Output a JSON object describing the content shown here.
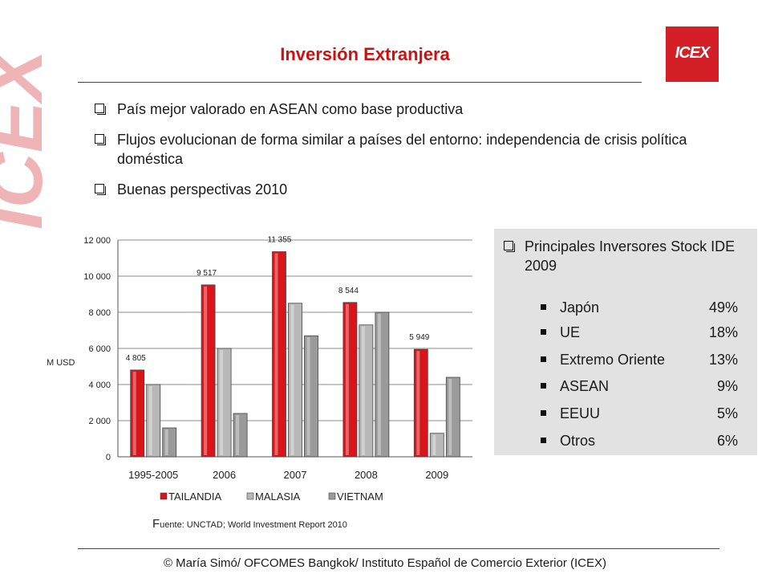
{
  "slide": {
    "title": "Inversión Extranjera",
    "watermark_text": "ICEX",
    "logo_text": "ICEX",
    "bullets": [
      "País mejor valorado en ASEAN como base productiva",
      "Flujos evolucionan de forma similar a países del entorno: independencia de crisis política doméstica",
      "Buenas perspectivas 2010"
    ],
    "source_prefix": "F",
    "source_rest": "uente: UNCTAD; World Investment Report 2010",
    "footer": "© María Simó/ OFCOMES Bangkok/ Instituto Español de Comercio Exterior (ICEX)"
  },
  "investors": {
    "heading": "Principales Inversores Stock IDE 2009",
    "rows": [
      {
        "name": "Japón",
        "pct": "49%"
      },
      {
        "name": "UE",
        "pct": "18%"
      },
      {
        "name": "Extremo Oriente",
        "pct": "13%"
      },
      {
        "name": "ASEAN",
        "pct": "9%"
      },
      {
        "name": "EEUU",
        "pct": "5%"
      },
      {
        "name": "Otros",
        "pct": "6%"
      }
    ]
  },
  "chart_data": {
    "type": "bar",
    "categories": [
      "1995-2005",
      "2006",
      "2007",
      "2008",
      "2009"
    ],
    "series": [
      {
        "name": "TAILANDIA",
        "values": [
          4805,
          9517,
          11355,
          8544,
          5949
        ],
        "labels": [
          "4 805",
          "9 517",
          "11 355",
          "8 544",
          "5 949"
        ],
        "color": "#d8151b"
      },
      {
        "name": "MALASIA",
        "values": [
          4000,
          6000,
          8500,
          7300,
          1300
        ],
        "color": "#b8b8b8"
      },
      {
        "name": "VIETNAM",
        "values": [
          1600,
          2400,
          6700,
          8000,
          4400
        ],
        "color": "#9a9a9a"
      }
    ],
    "yticks": [
      "0",
      "2 000",
      "4 000",
      "6 000",
      "8 000",
      "10 000",
      "12 000"
    ],
    "ytick_values": [
      0,
      2000,
      4000,
      6000,
      8000,
      10000,
      12000
    ],
    "ylim": [
      0,
      12000
    ],
    "ylabel": "M USD",
    "xlabel": "",
    "grid": true,
    "legend_position": "bottom"
  }
}
